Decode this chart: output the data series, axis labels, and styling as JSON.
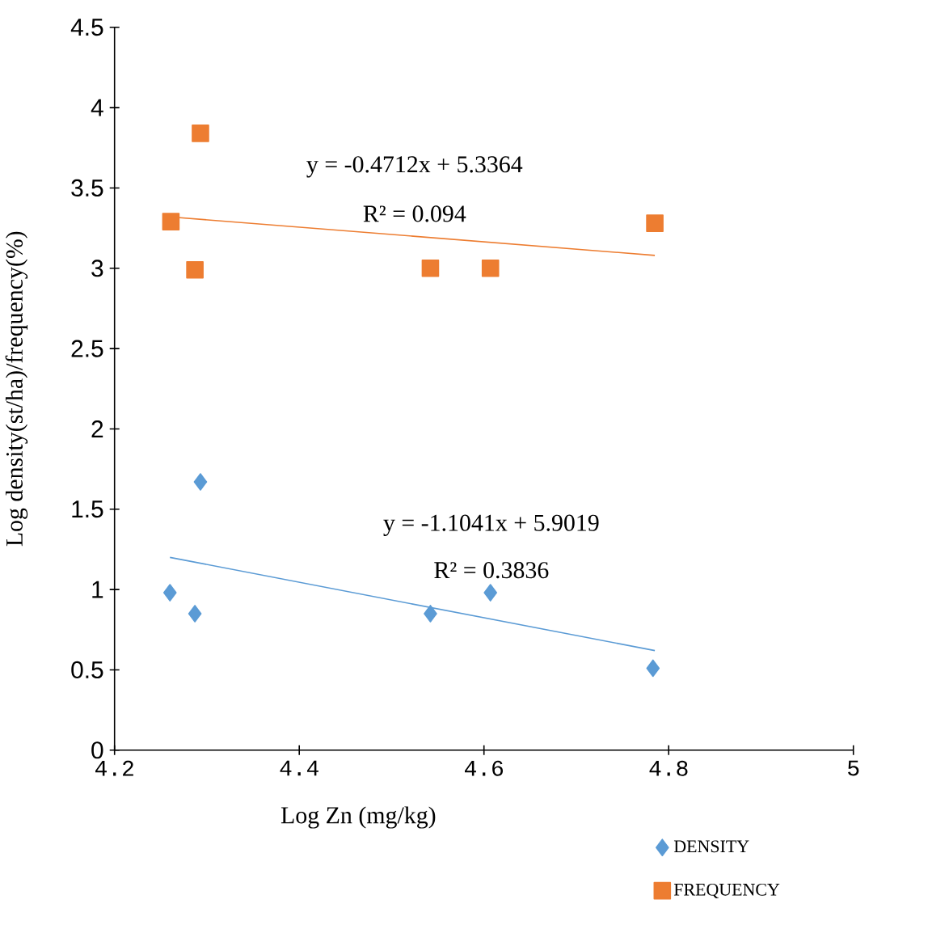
{
  "chart_data": {
    "type": "scatter",
    "xlabel": "Log Zn (mg/kg)",
    "ylabel": "Log density(st/ha)/frequency(%)",
    "xlim": [
      4.2,
      5
    ],
    "xticks": [
      {
        "value": 4.2,
        "label": "4.2"
      },
      {
        "value": 4.4,
        "label": "4.4"
      },
      {
        "value": 4.6,
        "label": "4.6"
      },
      {
        "value": 4.8,
        "label": "4.8"
      },
      5
    ],
    "ylim": [
      0,
      4.5
    ],
    "yticks": [
      0,
      0.5,
      1,
      1.5,
      2,
      2.5,
      3,
      3.5,
      4,
      4.5
    ],
    "grid": false,
    "legend": "bottom right",
    "series": [
      {
        "name": "DENSITY",
        "color": "#5b9bd5",
        "marker": "diamond",
        "x": [
          4.26,
          4.287,
          4.293,
          4.542,
          4.607,
          4.783
        ],
        "values": [
          0.98,
          0.85,
          1.67,
          0.85,
          0.98,
          0.51
        ]
      },
      {
        "name": "FREQUENCY",
        "color": "#ed7d31",
        "marker": "square",
        "x": [
          4.261,
          4.287,
          4.293,
          4.542,
          4.607,
          4.785
        ],
        "values": [
          3.29,
          2.99,
          3.84,
          3.0,
          3.0,
          3.28
        ]
      },
      {
        "type": "line",
        "color": "#5b9bd5",
        "marker": "none",
        "x": [
          4.26,
          4.785
        ],
        "values": [
          1.2,
          0.62
        ]
      },
      {
        "type": "line",
        "color": "#ed7d31",
        "marker": "none",
        "x": [
          4.26,
          4.785
        ],
        "values": [
          3.32,
          3.08
        ]
      }
    ],
    "annotations": [
      "y = -0.4712x + 5.3364",
      "R² = 0.094",
      "y = -1.1041x + 5.9019",
      "R² = 0.3836"
    ]
  }
}
